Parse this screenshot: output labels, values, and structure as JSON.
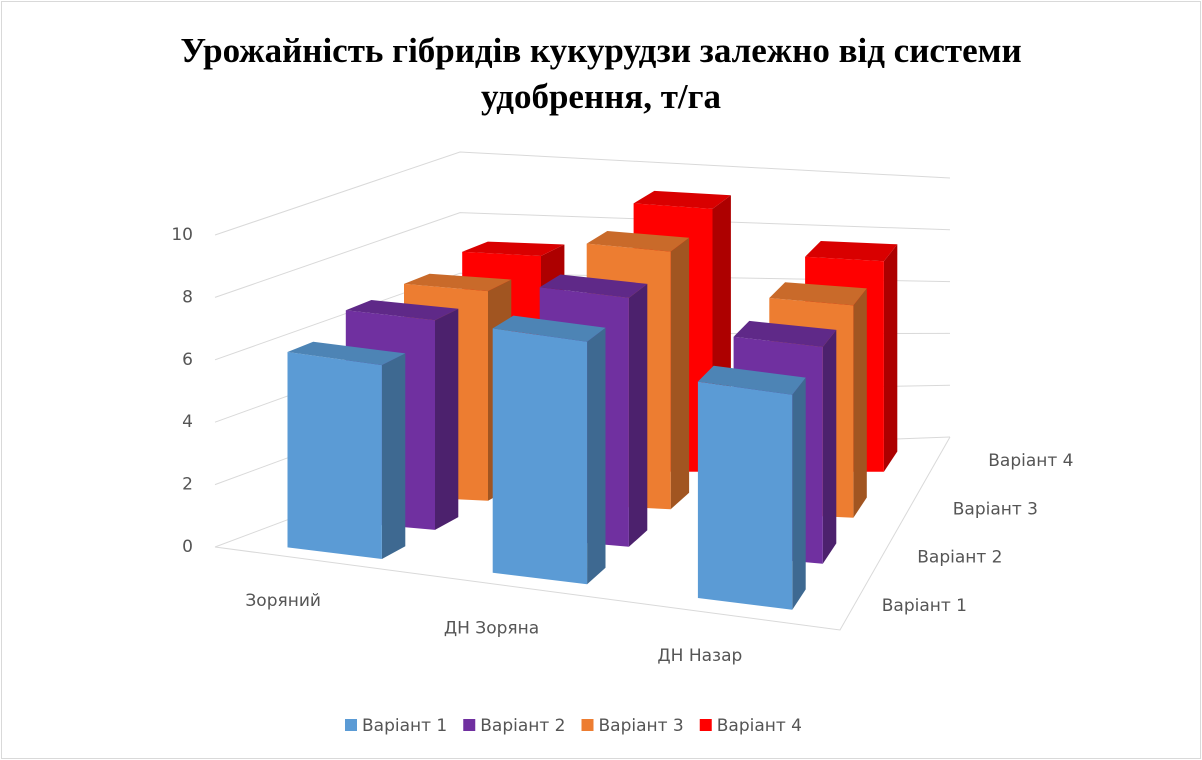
{
  "chart_data": {
    "type": "bar3d",
    "title": "Урожайність гібридів кукурудзи залежно від системи удобрення, т/га",
    "categories": [
      "Зоряний",
      "ДН Зоряна",
      "ДН Назар"
    ],
    "series": [
      {
        "name": "Варіант 1",
        "color": "#5b9bd5",
        "values": [
          6.3,
          8.0,
          7.2
        ]
      },
      {
        "name": "Варіант 2",
        "color": "#7030a0",
        "values": [
          6.9,
          8.4,
          7.5
        ]
      },
      {
        "name": "Варіант 3",
        "color": "#ed7d31",
        "values": [
          7.0,
          8.9,
          7.6
        ]
      },
      {
        "name": "Варіант 4",
        "color": "#ff0000",
        "values": [
          7.3,
          9.3,
          7.8
        ]
      }
    ],
    "ylim": [
      0,
      10
    ],
    "yticks": [
      0,
      2,
      4,
      6,
      8,
      10
    ],
    "grid": true,
    "legend": "bottom"
  }
}
